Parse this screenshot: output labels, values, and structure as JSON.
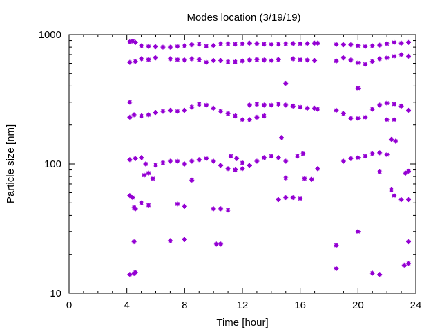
{
  "chart_data": {
    "type": "scatter",
    "title": "Modes location (3/19/19)",
    "xlabel": "Time [hour]",
    "ylabel": "Particle size [nm]",
    "xlim": [
      0,
      24
    ],
    "ylim": [
      10,
      1000
    ],
    "yscale": "log",
    "xticks": [
      0,
      4,
      8,
      12,
      16,
      20,
      24
    ],
    "xtick_labels": [
      "0",
      "4",
      "8",
      "12",
      "16",
      "20",
      "24"
    ],
    "yticks": [
      10,
      100,
      1000
    ],
    "ytick_labels": [
      "10",
      "100",
      "1000"
    ],
    "grid": false,
    "legend": "none",
    "marker_color": "#9400d3",
    "series": [
      {
        "points": [
          [
            4.2,
            880
          ],
          [
            4.4,
            890
          ],
          [
            4.6,
            870
          ],
          [
            5.0,
            820
          ],
          [
            5.5,
            810
          ],
          [
            6.0,
            805
          ],
          [
            6.5,
            800
          ],
          [
            7.0,
            800
          ],
          [
            7.5,
            810
          ],
          [
            8.0,
            820
          ],
          [
            8.5,
            835
          ],
          [
            9.0,
            845
          ],
          [
            9.5,
            815
          ],
          [
            10.0,
            825
          ],
          [
            10.5,
            850
          ],
          [
            11.0,
            850
          ],
          [
            11.5,
            845
          ],
          [
            12.0,
            850
          ],
          [
            12.5,
            860
          ],
          [
            13.0,
            855
          ],
          [
            13.5,
            845
          ],
          [
            14.0,
            840
          ],
          [
            14.5,
            845
          ],
          [
            15.0,
            850
          ],
          [
            15.5,
            855
          ],
          [
            16.0,
            850
          ],
          [
            16.5,
            855
          ],
          [
            17.0,
            860
          ],
          [
            17.2,
            860
          ],
          [
            18.5,
            840
          ],
          [
            19.0,
            835
          ],
          [
            19.5,
            835
          ],
          [
            20.0,
            820
          ],
          [
            20.5,
            810
          ],
          [
            21.0,
            820
          ],
          [
            21.5,
            830
          ],
          [
            22.0,
            850
          ],
          [
            22.5,
            870
          ],
          [
            23.0,
            860
          ],
          [
            23.5,
            870
          ],
          [
            4.2,
            610
          ],
          [
            4.6,
            620
          ],
          [
            5.0,
            650
          ],
          [
            5.5,
            640
          ],
          [
            6.0,
            660
          ],
          [
            7.0,
            650
          ],
          [
            7.5,
            640
          ],
          [
            8.0,
            635
          ],
          [
            8.5,
            650
          ],
          [
            9.0,
            640
          ],
          [
            9.5,
            610
          ],
          [
            10.0,
            630
          ],
          [
            10.5,
            630
          ],
          [
            11.0,
            615
          ],
          [
            11.5,
            615
          ],
          [
            12.0,
            625
          ],
          [
            12.5,
            635
          ],
          [
            13.0,
            640
          ],
          [
            13.5,
            635
          ],
          [
            14.0,
            630
          ],
          [
            14.5,
            640
          ],
          [
            15.5,
            650
          ],
          [
            16.0,
            640
          ],
          [
            16.5,
            635
          ],
          [
            17.0,
            630
          ],
          [
            18.5,
            625
          ],
          [
            19.0,
            660
          ],
          [
            19.5,
            635
          ],
          [
            20.0,
            605
          ],
          [
            20.5,
            590
          ],
          [
            21.0,
            620
          ],
          [
            21.5,
            650
          ],
          [
            22.0,
            660
          ],
          [
            22.5,
            680
          ],
          [
            23.0,
            700
          ],
          [
            23.5,
            680
          ],
          [
            15.0,
            420
          ],
          [
            20.0,
            385
          ],
          [
            4.2,
            300
          ],
          [
            4.2,
            230
          ],
          [
            4.5,
            240
          ],
          [
            5.0,
            235
          ],
          [
            5.5,
            240
          ],
          [
            6.0,
            250
          ],
          [
            6.5,
            255
          ],
          [
            7.0,
            260
          ],
          [
            7.5,
            255
          ],
          [
            8.0,
            260
          ],
          [
            8.5,
            275
          ],
          [
            9.0,
            290
          ],
          [
            9.5,
            285
          ],
          [
            10.0,
            270
          ],
          [
            10.5,
            255
          ],
          [
            11.0,
            245
          ],
          [
            11.5,
            235
          ],
          [
            12.0,
            220
          ],
          [
            12.5,
            220
          ],
          [
            13.0,
            230
          ],
          [
            13.5,
            235
          ],
          [
            12.5,
            285
          ],
          [
            13.0,
            290
          ],
          [
            13.5,
            285
          ],
          [
            14.0,
            285
          ],
          [
            14.5,
            290
          ],
          [
            15.0,
            285
          ],
          [
            15.5,
            280
          ],
          [
            16.0,
            275
          ],
          [
            16.5,
            270
          ],
          [
            17.0,
            270
          ],
          [
            17.2,
            265
          ],
          [
            18.5,
            260
          ],
          [
            19.0,
            245
          ],
          [
            19.5,
            225
          ],
          [
            20.0,
            225
          ],
          [
            20.5,
            230
          ],
          [
            21.0,
            265
          ],
          [
            21.5,
            285
          ],
          [
            22.0,
            295
          ],
          [
            22.5,
            290
          ],
          [
            23.0,
            280
          ],
          [
            23.5,
            260
          ],
          [
            22.0,
            220
          ],
          [
            22.5,
            220
          ],
          [
            22.3,
            155
          ],
          [
            22.6,
            150
          ],
          [
            14.7,
            160
          ],
          [
            4.2,
            108
          ],
          [
            4.6,
            110
          ],
          [
            5.0,
            112
          ],
          [
            5.3,
            100
          ],
          [
            6.0,
            98
          ],
          [
            6.5,
            102
          ],
          [
            7.0,
            105
          ],
          [
            7.5,
            105
          ],
          [
            8.0,
            100
          ],
          [
            8.5,
            105
          ],
          [
            9.0,
            108
          ],
          [
            9.5,
            110
          ],
          [
            10.0,
            105
          ],
          [
            10.5,
            97
          ],
          [
            11.0,
            92
          ],
          [
            11.5,
            90
          ],
          [
            12.0,
            92
          ],
          [
            11.2,
            115
          ],
          [
            11.6,
            110
          ],
          [
            12.0,
            102
          ],
          [
            12.5,
            97
          ],
          [
            13.0,
            105
          ],
          [
            13.5,
            112
          ],
          [
            14.0,
            115
          ],
          [
            14.5,
            112
          ],
          [
            15.0,
            105
          ],
          [
            15.8,
            115
          ],
          [
            16.2,
            120
          ],
          [
            17.2,
            92
          ],
          [
            19.0,
            105
          ],
          [
            19.5,
            110
          ],
          [
            20.0,
            112
          ],
          [
            20.5,
            115
          ],
          [
            21.0,
            120
          ],
          [
            21.5,
            122
          ],
          [
            22.0,
            118
          ],
          [
            23.3,
            85
          ],
          [
            23.5,
            88
          ],
          [
            5.2,
            82
          ],
          [
            5.5,
            85
          ],
          [
            5.8,
            77
          ],
          [
            8.5,
            75
          ],
          [
            15.0,
            78
          ],
          [
            16.3,
            77
          ],
          [
            16.8,
            76
          ],
          [
            21.5,
            87
          ],
          [
            22.3,
            63
          ],
          [
            4.2,
            57
          ],
          [
            4.4,
            55
          ],
          [
            5.0,
            50
          ],
          [
            5.5,
            48
          ],
          [
            7.5,
            49
          ],
          [
            8.0,
            47
          ],
          [
            4.5,
            46
          ],
          [
            4.6,
            45
          ],
          [
            10.0,
            45
          ],
          [
            10.5,
            45
          ],
          [
            11.0,
            44
          ],
          [
            14.5,
            53
          ],
          [
            15.0,
            55
          ],
          [
            15.5,
            55
          ],
          [
            16.0,
            54
          ],
          [
            22.5,
            57
          ],
          [
            23.0,
            53
          ],
          [
            23.5,
            53
          ],
          [
            4.5,
            25
          ],
          [
            7.0,
            25.5
          ],
          [
            8.0,
            26
          ],
          [
            10.2,
            24
          ],
          [
            10.5,
            24
          ],
          [
            18.5,
            23.5
          ],
          [
            20.0,
            30
          ],
          [
            23.5,
            25
          ],
          [
            4.2,
            14
          ],
          [
            4.5,
            14.2
          ],
          [
            4.6,
            14.5
          ],
          [
            18.5,
            15.5
          ],
          [
            21.0,
            14.3
          ],
          [
            21.5,
            14
          ],
          [
            23.2,
            16.5
          ],
          [
            23.5,
            17
          ]
        ]
      }
    ]
  }
}
